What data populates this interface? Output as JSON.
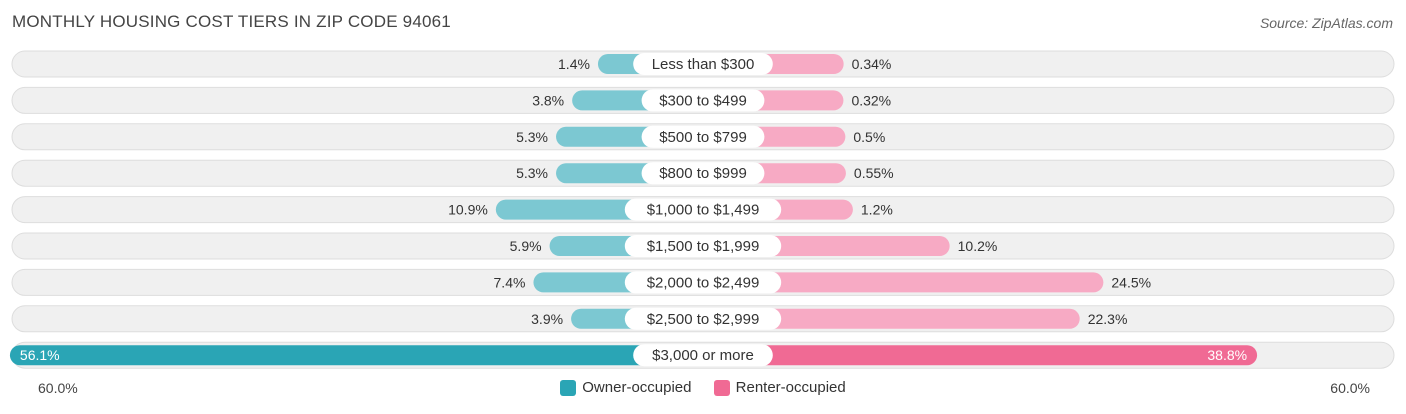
{
  "header": {
    "title": "MONTHLY HOUSING COST TIERS IN ZIP CODE 94061",
    "source": "Source: ZipAtlas.com"
  },
  "axis": {
    "left_label": "60.0%",
    "right_label": "60.0%"
  },
  "legend": {
    "owner_label": "Owner-occupied",
    "renter_label": "Renter-occupied"
  },
  "colors": {
    "owner": "#7cc8d2",
    "owner_strong": "#2aa5b5",
    "renter": "#f7aac4",
    "renter_strong": "#f06a94"
  },
  "chart_data": {
    "type": "bar",
    "orientation": "horizontal-diverging",
    "title": "MONTHLY HOUSING COST TIERS IN ZIP CODE 94061",
    "xlim": [
      -60,
      60
    ],
    "categories": [
      "Less than $300",
      "$300 to $499",
      "$500 to $799",
      "$800 to $999",
      "$1,000 to $1,499",
      "$1,500 to $1,999",
      "$2,000 to $2,499",
      "$2,500 to $2,999",
      "$3,000 or more"
    ],
    "series": [
      {
        "name": "Owner-occupied",
        "values": [
          1.4,
          3.8,
          5.3,
          5.3,
          10.9,
          5.9,
          7.4,
          3.9,
          56.1
        ],
        "labels": [
          "1.4%",
          "3.8%",
          "5.3%",
          "5.3%",
          "10.9%",
          "5.9%",
          "7.4%",
          "3.9%",
          "56.1%"
        ]
      },
      {
        "name": "Renter-occupied",
        "values": [
          0.34,
          0.32,
          0.5,
          0.55,
          1.2,
          10.2,
          24.5,
          22.3,
          38.8
        ],
        "labels": [
          "0.34%",
          "0.32%",
          "0.5%",
          "0.55%",
          "1.2%",
          "10.2%",
          "24.5%",
          "22.3%",
          "38.8%"
        ]
      }
    ],
    "legend_position": "bottom-center"
  }
}
